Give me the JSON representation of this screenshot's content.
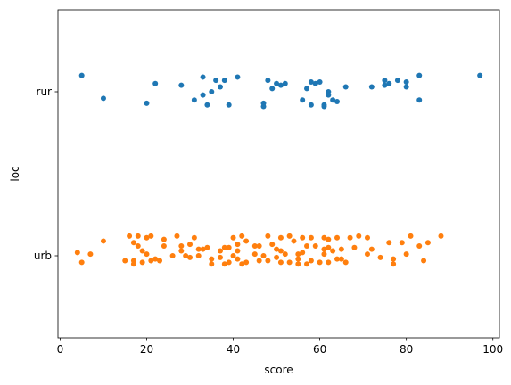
{
  "chart_data": {
    "type": "scatter",
    "subtype": "strip",
    "title": "",
    "xlabel": "score",
    "ylabel": "loc",
    "xlim": [
      -0.5,
      101.5
    ],
    "x_ticks": [
      0,
      20,
      40,
      60,
      80,
      100
    ],
    "categories": [
      "rur",
      "urb"
    ],
    "grid": false,
    "legend": "none",
    "series": [
      {
        "category": "rur",
        "color": "#1f77b4",
        "points": [
          {
            "x": 5,
            "jitter": 0.1
          },
          {
            "x": 10,
            "jitter": -0.04
          },
          {
            "x": 20,
            "jitter": -0.07
          },
          {
            "x": 22,
            "jitter": 0.05
          },
          {
            "x": 28,
            "jitter": 0.04
          },
          {
            "x": 31,
            "jitter": -0.05
          },
          {
            "x": 33,
            "jitter": 0.09
          },
          {
            "x": 33,
            "jitter": -0.02
          },
          {
            "x": 34,
            "jitter": -0.08
          },
          {
            "x": 35,
            "jitter": 0.0
          },
          {
            "x": 36,
            "jitter": 0.07
          },
          {
            "x": 37,
            "jitter": 0.03
          },
          {
            "x": 38,
            "jitter": 0.07
          },
          {
            "x": 39,
            "jitter": -0.08
          },
          {
            "x": 41,
            "jitter": 0.09
          },
          {
            "x": 47,
            "jitter": -0.07
          },
          {
            "x": 47,
            "jitter": -0.09
          },
          {
            "x": 48,
            "jitter": 0.07
          },
          {
            "x": 49,
            "jitter": 0.02
          },
          {
            "x": 50,
            "jitter": 0.05
          },
          {
            "x": 51,
            "jitter": 0.04
          },
          {
            "x": 52,
            "jitter": 0.05
          },
          {
            "x": 56,
            "jitter": -0.05
          },
          {
            "x": 57,
            "jitter": 0.02
          },
          {
            "x": 58,
            "jitter": 0.06
          },
          {
            "x": 58,
            "jitter": -0.08
          },
          {
            "x": 59,
            "jitter": 0.05
          },
          {
            "x": 60,
            "jitter": 0.06
          },
          {
            "x": 61,
            "jitter": -0.08
          },
          {
            "x": 61,
            "jitter": -0.09
          },
          {
            "x": 62,
            "jitter": 0.0
          },
          {
            "x": 62,
            "jitter": -0.02
          },
          {
            "x": 63,
            "jitter": -0.05
          },
          {
            "x": 64,
            "jitter": -0.06
          },
          {
            "x": 66,
            "jitter": 0.03
          },
          {
            "x": 72,
            "jitter": 0.03
          },
          {
            "x": 75,
            "jitter": 0.07
          },
          {
            "x": 75,
            "jitter": 0.04
          },
          {
            "x": 76,
            "jitter": 0.05
          },
          {
            "x": 78,
            "jitter": 0.07
          },
          {
            "x": 80,
            "jitter": 0.06
          },
          {
            "x": 80,
            "jitter": 0.03
          },
          {
            "x": 83,
            "jitter": 0.1
          },
          {
            "x": 83,
            "jitter": -0.05
          },
          {
            "x": 97,
            "jitter": 0.1
          }
        ]
      },
      {
        "category": "urb",
        "color": "#ff7f0e",
        "points": [
          {
            "x": 4,
            "jitter": 0.02
          },
          {
            "x": 5,
            "jitter": -0.04
          },
          {
            "x": 7,
            "jitter": 0.01
          },
          {
            "x": 10,
            "jitter": 0.09
          },
          {
            "x": 15,
            "jitter": -0.03
          },
          {
            "x": 16,
            "jitter": 0.12
          },
          {
            "x": 17,
            "jitter": 0.08
          },
          {
            "x": 17,
            "jitter": -0.03
          },
          {
            "x": 17,
            "jitter": -0.05
          },
          {
            "x": 18,
            "jitter": 0.12
          },
          {
            "x": 18,
            "jitter": 0.06
          },
          {
            "x": 19,
            "jitter": 0.03
          },
          {
            "x": 19,
            "jitter": -0.04
          },
          {
            "x": 20,
            "jitter": 0.11
          },
          {
            "x": 20,
            "jitter": 0.01
          },
          {
            "x": 21,
            "jitter": 0.12
          },
          {
            "x": 21,
            "jitter": -0.03
          },
          {
            "x": 22,
            "jitter": -0.02
          },
          {
            "x": 23,
            "jitter": -0.03
          },
          {
            "x": 24,
            "jitter": 0.1
          },
          {
            "x": 24,
            "jitter": 0.06
          },
          {
            "x": 26,
            "jitter": 0.0
          },
          {
            "x": 27,
            "jitter": 0.12
          },
          {
            "x": 28,
            "jitter": 0.06
          },
          {
            "x": 28,
            "jitter": 0.03
          },
          {
            "x": 29,
            "jitter": 0.0
          },
          {
            "x": 30,
            "jitter": -0.01
          },
          {
            "x": 30,
            "jitter": 0.07
          },
          {
            "x": 31,
            "jitter": 0.11
          },
          {
            "x": 32,
            "jitter": 0.04
          },
          {
            "x": 32,
            "jitter": 0.0
          },
          {
            "x": 33,
            "jitter": 0.04
          },
          {
            "x": 34,
            "jitter": 0.05
          },
          {
            "x": 35,
            "jitter": -0.02
          },
          {
            "x": 35,
            "jitter": -0.05
          },
          {
            "x": 37,
            "jitter": 0.03
          },
          {
            "x": 37,
            "jitter": -0.01
          },
          {
            "x": 38,
            "jitter": 0.05
          },
          {
            "x": 38,
            "jitter": -0.05
          },
          {
            "x": 39,
            "jitter": 0.05
          },
          {
            "x": 39,
            "jitter": -0.04
          },
          {
            "x": 40,
            "jitter": 0.11
          },
          {
            "x": 40,
            "jitter": 0.0
          },
          {
            "x": 41,
            "jitter": 0.07
          },
          {
            "x": 41,
            "jitter": 0.03
          },
          {
            "x": 41,
            "jitter": -0.02
          },
          {
            "x": 42,
            "jitter": 0.12
          },
          {
            "x": 42,
            "jitter": -0.05
          },
          {
            "x": 43,
            "jitter": 0.09
          },
          {
            "x": 43,
            "jitter": -0.04
          },
          {
            "x": 45,
            "jitter": 0.06
          },
          {
            "x": 45,
            "jitter": 0.01
          },
          {
            "x": 46,
            "jitter": 0.06
          },
          {
            "x": 46,
            "jitter": -0.03
          },
          {
            "x": 47,
            "jitter": 0.0
          },
          {
            "x": 48,
            "jitter": 0.12
          },
          {
            "x": 48,
            "jitter": -0.03
          },
          {
            "x": 49,
            "jitter": 0.07
          },
          {
            "x": 50,
            "jitter": 0.04
          },
          {
            "x": 50,
            "jitter": -0.01
          },
          {
            "x": 51,
            "jitter": 0.11
          },
          {
            "x": 51,
            "jitter": 0.03
          },
          {
            "x": 51,
            "jitter": -0.04
          },
          {
            "x": 52,
            "jitter": 0.01
          },
          {
            "x": 53,
            "jitter": 0.12
          },
          {
            "x": 53,
            "jitter": -0.04
          },
          {
            "x": 54,
            "jitter": 0.09
          },
          {
            "x": 55,
            "jitter": 0.01
          },
          {
            "x": 55,
            "jitter": -0.02
          },
          {
            "x": 55,
            "jitter": -0.05
          },
          {
            "x": 56,
            "jitter": 0.11
          },
          {
            "x": 56,
            "jitter": 0.02
          },
          {
            "x": 57,
            "jitter": 0.06
          },
          {
            "x": 57,
            "jitter": -0.05
          },
          {
            "x": 58,
            "jitter": 0.11
          },
          {
            "x": 58,
            "jitter": -0.03
          },
          {
            "x": 59,
            "jitter": 0.06
          },
          {
            "x": 60,
            "jitter": -0.04
          },
          {
            "x": 61,
            "jitter": 0.11
          },
          {
            "x": 61,
            "jitter": 0.04
          },
          {
            "x": 61,
            "jitter": 0.01
          },
          {
            "x": 62,
            "jitter": 0.1
          },
          {
            "x": 62,
            "jitter": 0.05
          },
          {
            "x": 62,
            "jitter": -0.04
          },
          {
            "x": 63,
            "jitter": 0.03
          },
          {
            "x": 64,
            "jitter": 0.11
          },
          {
            "x": 64,
            "jitter": -0.02
          },
          {
            "x": 65,
            "jitter": -0.02
          },
          {
            "x": 65,
            "jitter": 0.04
          },
          {
            "x": 66,
            "jitter": -0.04
          },
          {
            "x": 67,
            "jitter": 0.11
          },
          {
            "x": 68,
            "jitter": 0.05
          },
          {
            "x": 69,
            "jitter": 0.12
          },
          {
            "x": 71,
            "jitter": 0.11
          },
          {
            "x": 71,
            "jitter": 0.01
          },
          {
            "x": 72,
            "jitter": 0.04
          },
          {
            "x": 74,
            "jitter": -0.01
          },
          {
            "x": 76,
            "jitter": 0.08
          },
          {
            "x": 77,
            "jitter": -0.02
          },
          {
            "x": 77,
            "jitter": -0.05
          },
          {
            "x": 79,
            "jitter": 0.08
          },
          {
            "x": 80,
            "jitter": 0.01
          },
          {
            "x": 81,
            "jitter": 0.12
          },
          {
            "x": 83,
            "jitter": 0.06
          },
          {
            "x": 84,
            "jitter": -0.03
          },
          {
            "x": 85,
            "jitter": 0.08
          },
          {
            "x": 88,
            "jitter": 0.12
          }
        ]
      }
    ]
  }
}
